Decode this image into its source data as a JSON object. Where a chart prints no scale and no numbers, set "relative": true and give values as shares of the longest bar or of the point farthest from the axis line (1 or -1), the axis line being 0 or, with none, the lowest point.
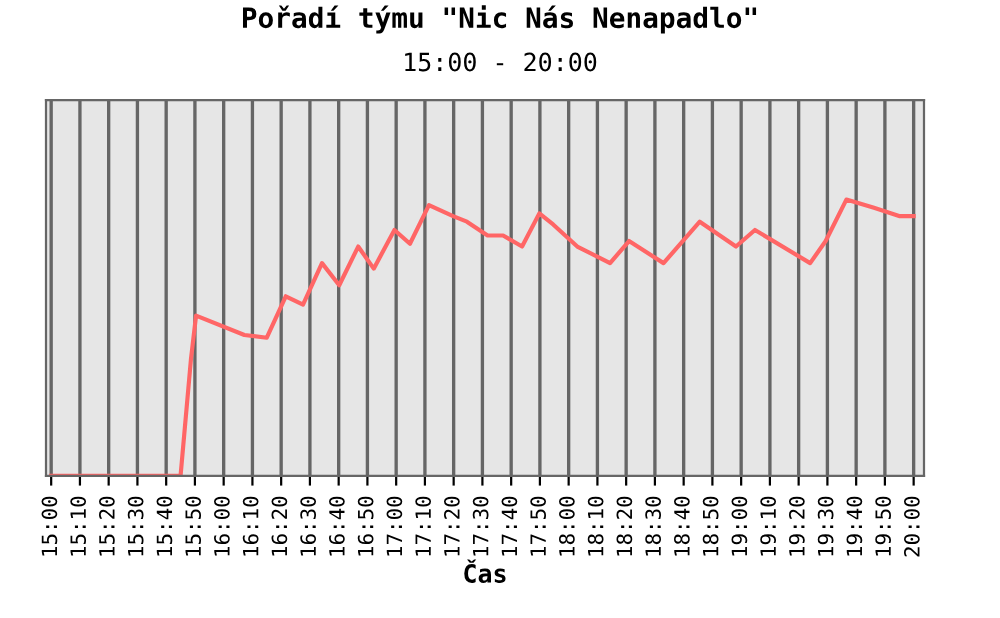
{
  "chart_data": {
    "type": "line",
    "title": "Pořadí týmu \"Nic Nás Nenapadlo\"",
    "subtitle": "15:00 - 20:00",
    "xlabel": "Čas",
    "relative": true,
    "grid": "x",
    "marker": "none",
    "line_style": "solid",
    "xlim": [
      14.97,
      20.06
    ],
    "xticks": [
      {
        "value": 15.0,
        "label": "15:00"
      },
      {
        "value": 15.1667,
        "label": "15:10"
      },
      {
        "value": 15.3333,
        "label": "15:20"
      },
      {
        "value": 15.5,
        "label": "15:30"
      },
      {
        "value": 15.6667,
        "label": "15:40"
      },
      {
        "value": 15.8333,
        "label": "15:50"
      },
      {
        "value": 16.0,
        "label": "16:00"
      },
      {
        "value": 16.1667,
        "label": "16:10"
      },
      {
        "value": 16.3333,
        "label": "16:20"
      },
      {
        "value": 16.5,
        "label": "16:30"
      },
      {
        "value": 16.6667,
        "label": "16:40"
      },
      {
        "value": 16.8333,
        "label": "16:50"
      },
      {
        "value": 17.0,
        "label": "17:00"
      },
      {
        "value": 17.1667,
        "label": "17:10"
      },
      {
        "value": 17.3333,
        "label": "17:20"
      },
      {
        "value": 17.5,
        "label": "17:30"
      },
      {
        "value": 17.6667,
        "label": "17:40"
      },
      {
        "value": 17.8333,
        "label": "17:50"
      },
      {
        "value": 18.0,
        "label": "18:00"
      },
      {
        "value": 18.1667,
        "label": "18:10"
      },
      {
        "value": 18.3333,
        "label": "18:20"
      },
      {
        "value": 18.5,
        "label": "18:30"
      },
      {
        "value": 18.6667,
        "label": "18:40"
      },
      {
        "value": 18.8333,
        "label": "18:50"
      },
      {
        "value": 19.0,
        "label": "19:00"
      },
      {
        "value": 19.1667,
        "label": "19:10"
      },
      {
        "value": 19.3333,
        "label": "19:20"
      },
      {
        "value": 19.5,
        "label": "19:30"
      },
      {
        "value": 19.6667,
        "label": "19:40"
      },
      {
        "value": 19.8333,
        "label": "19:50"
      },
      {
        "value": 20.0,
        "label": "20:00"
      }
    ],
    "x": [
      15.0,
      15.75,
      15.81,
      15.84,
      16.12,
      16.25,
      16.36,
      16.46,
      16.57,
      16.67,
      16.78,
      16.87,
      16.99,
      17.08,
      17.19,
      17.33,
      17.41,
      17.53,
      17.62,
      17.73,
      17.83,
      17.91,
      18.05,
      18.24,
      18.35,
      18.55,
      18.76,
      18.97,
      19.08,
      19.4,
      19.49,
      19.61,
      19.77,
      19.92,
      20.0
    ],
    "series": [
      {
        "color": "#ff6666",
        "values": [
          0,
          0,
          0.42,
          0.58,
          0.51,
          0.5,
          0.65,
          0.62,
          0.77,
          0.69,
          0.83,
          0.75,
          0.89,
          0.84,
          0.98,
          0.94,
          0.92,
          0.87,
          0.87,
          0.83,
          0.95,
          0.91,
          0.83,
          0.77,
          0.85,
          0.77,
          0.92,
          0.83,
          0.89,
          0.77,
          0.85,
          1.0,
          0.97,
          0.94,
          0.94
        ]
      }
    ]
  }
}
